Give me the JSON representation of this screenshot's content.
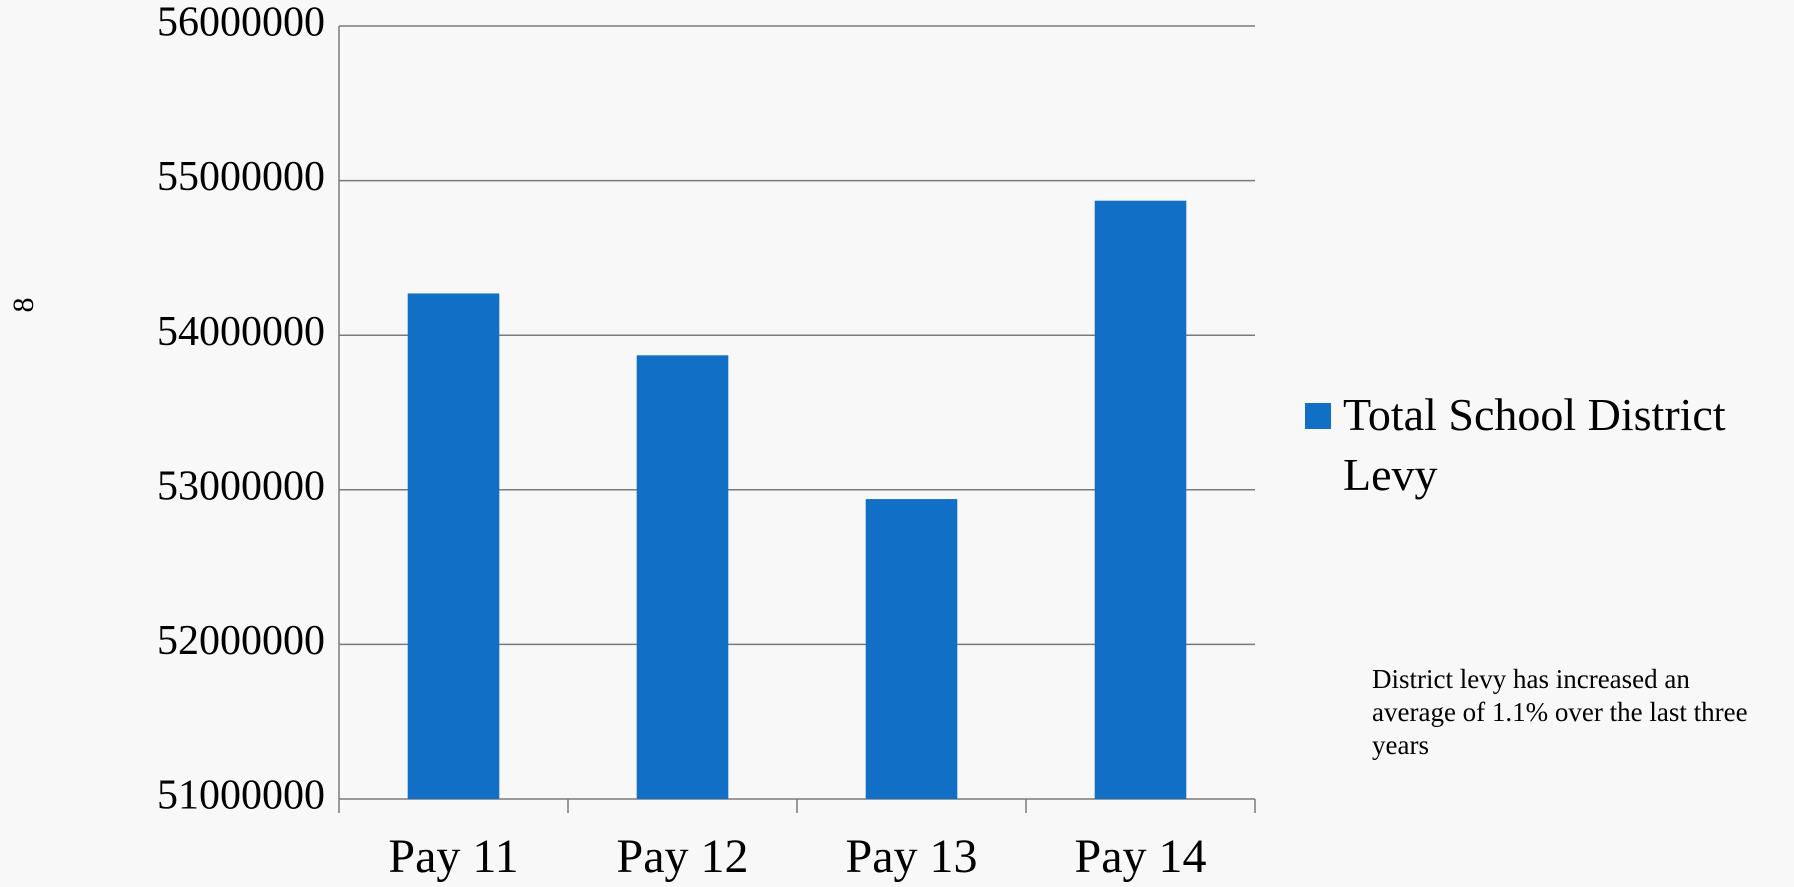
{
  "chart_data": {
    "type": "bar",
    "categories": [
      "Pay 11",
      "Pay 12",
      "Pay 13",
      "Pay 14"
    ],
    "series": [
      {
        "name": "Total School District Levy",
        "color": "#1170c6",
        "values": [
          54270000,
          53870000,
          52940000,
          54870000
        ]
      }
    ],
    "ylim": [
      51000000,
      56000000
    ],
    "yticks": [
      51000000,
      52000000,
      53000000,
      54000000,
      55000000,
      56000000
    ],
    "grid": true,
    "legend": "right",
    "annotation": "District levy has increased an average of 1.1%  over the last three years",
    "slide_number": "8"
  }
}
